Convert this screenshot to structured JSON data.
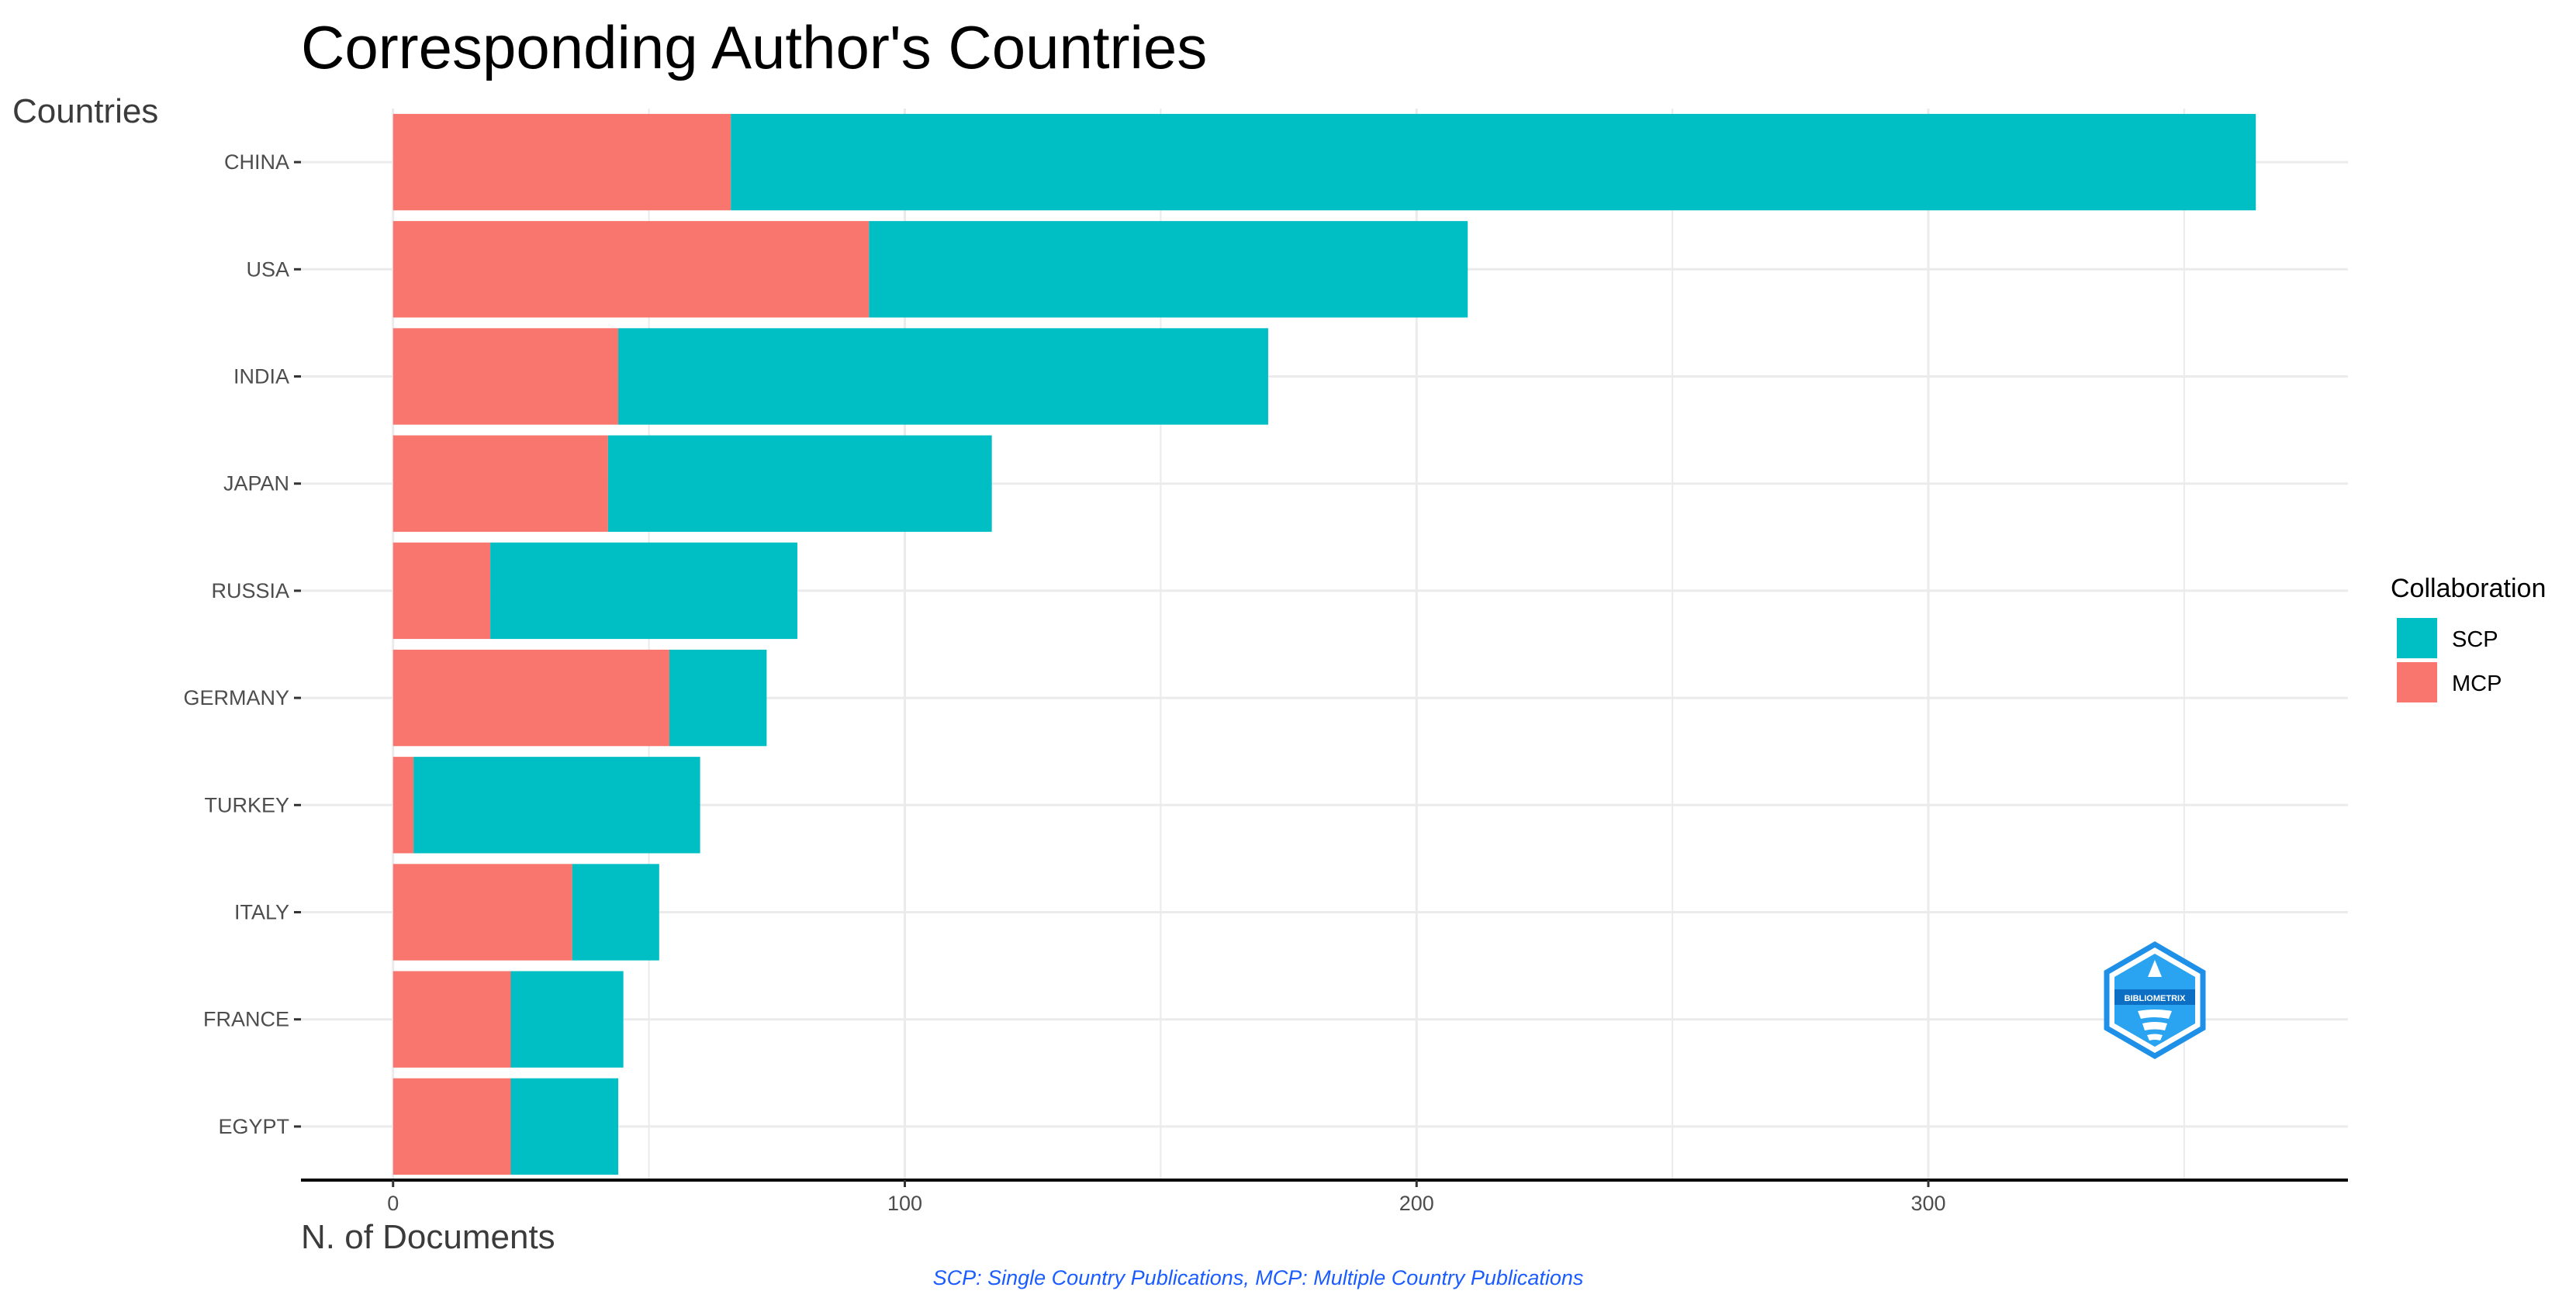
{
  "chart_data": {
    "type": "bar",
    "orientation": "horizontal",
    "stacked": true,
    "title": "Corresponding Author's Countries",
    "ylabel": "Countries",
    "xlabel": "N. of Documents",
    "categories": [
      "CHINA",
      "USA",
      "INDIA",
      "JAPAN",
      "RUSSIA",
      "GERMANY",
      "TURKEY",
      "ITALY",
      "FRANCE",
      "EGYPT"
    ],
    "series": [
      {
        "name": "MCP",
        "color": "#F8766D",
        "values": [
          66,
          93,
          44,
          42,
          19,
          54,
          4,
          35,
          23,
          23
        ]
      },
      {
        "name": "SCP",
        "color": "#00BFC4",
        "values": [
          298,
          117,
          127,
          75,
          60,
          19,
          56,
          17,
          22,
          21
        ]
      }
    ],
    "xticks": [
      0,
      100,
      200,
      300
    ],
    "xlim": [
      -18,
      382
    ],
    "grid": true,
    "legend": {
      "title": "Collaboration",
      "position": "right",
      "entries": [
        {
          "name": "SCP",
          "color": "#00BFC4"
        },
        {
          "name": "MCP",
          "color": "#F8766D"
        }
      ]
    },
    "caption": "SCP: Single Country Publications, MCP: Multiple Country Publications",
    "logo": {
      "icon": "bibliometrix-hexagon-logo",
      "text": "BIBLIOMETRIX",
      "color": "#1e90e8"
    }
  }
}
